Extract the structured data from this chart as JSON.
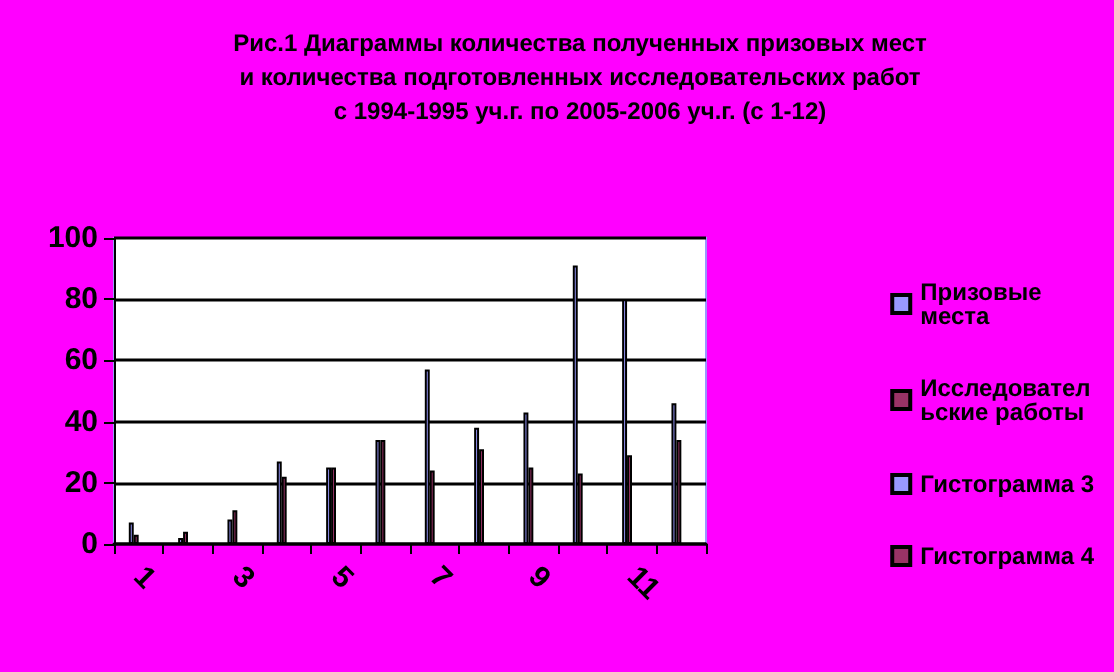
{
  "chart_data": {
    "type": "bar",
    "title": "Рис.1 Диаграммы количества полученных призовых мест\nи количества подготовленных исследовательских работ\nс 1994-1995 уч.г. по 2005-2006 уч.г. (с 1-12)",
    "categories": [
      "1",
      null,
      "3",
      null,
      "5",
      null,
      "7",
      null,
      "9",
      null,
      "11",
      null
    ],
    "series": [
      {
        "name": "Призовые места",
        "color": "#9999ff",
        "values": [
          7,
          2,
          8,
          27,
          25,
          34,
          57,
          38,
          43,
          91,
          80,
          46
        ]
      },
      {
        "name": "Исследовательские работы",
        "color": "#993366",
        "values": [
          3,
          4,
          11,
          22,
          25,
          34,
          24,
          31,
          25,
          23,
          29,
          34
        ]
      },
      {
        "name": "Гистограмма 3",
        "color": "#9999ff",
        "values": [
          null,
          null,
          null,
          null,
          null,
          null,
          null,
          null,
          null,
          null,
          null,
          null
        ]
      },
      {
        "name": "Гистограмма 4",
        "color": "#993366",
        "values": [
          null,
          null,
          null,
          null,
          null,
          null,
          null,
          null,
          null,
          null,
          null,
          null
        ]
      }
    ],
    "ylim": [
      0,
      100
    ],
    "yticks": [
      0,
      20,
      40,
      60,
      80,
      100
    ],
    "grid": "y",
    "legend": "right"
  }
}
